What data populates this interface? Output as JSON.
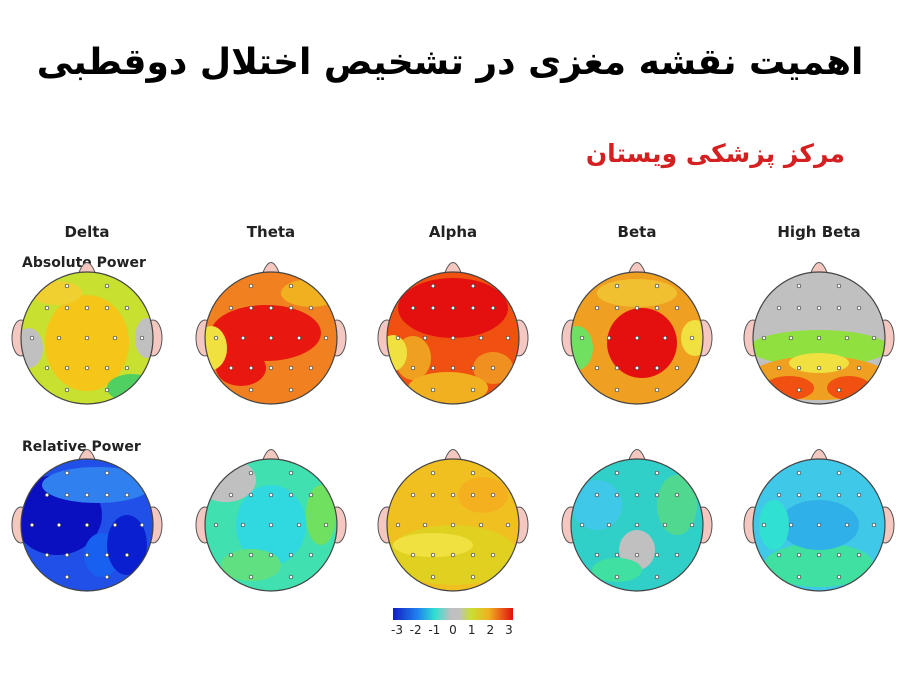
{
  "header": {
    "title": "اهمیت نقشه مغزی در تشخیص اختلال دوقطبی",
    "subtitle": "مرکز پزشکی ویستان"
  },
  "bands": [
    "Delta",
    "Theta",
    "Alpha",
    "Beta",
    "High Beta"
  ],
  "rows": [
    "Absolute Power",
    "Relative Power"
  ],
  "colorbar": {
    "ticks": [
      -3,
      -2,
      -1,
      0,
      1,
      2,
      3
    ]
  }
}
